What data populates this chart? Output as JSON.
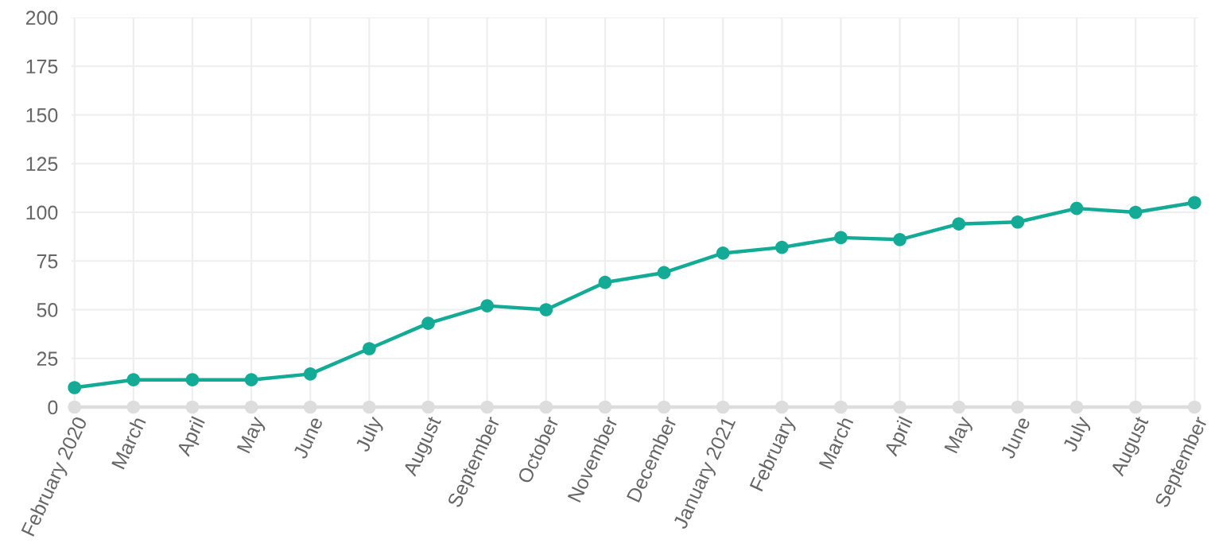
{
  "chart_data": {
    "type": "line",
    "categories": [
      "February 2020",
      "March",
      "April",
      "May",
      "June",
      "July",
      "August",
      "September",
      "October",
      "November",
      "December",
      "January 2021",
      "February",
      "March",
      "April",
      "May",
      "June",
      "July",
      "August",
      "September"
    ],
    "series": [
      {
        "color": "#dddddd",
        "values": [
          0,
          0,
          0,
          0,
          0,
          0,
          0,
          0,
          0,
          0,
          0,
          0,
          0,
          0,
          0,
          0,
          0,
          0,
          0,
          0
        ]
      },
      {
        "color": "#13ab95",
        "values": [
          10,
          14,
          14,
          14,
          17,
          30,
          43,
          52,
          50,
          64,
          69,
          79,
          82,
          87,
          86,
          94,
          95,
          102,
          100,
          105
        ]
      }
    ],
    "ylim": [
      0,
      200
    ],
    "yticks": [
      0,
      25,
      50,
      75,
      100,
      125,
      150,
      175,
      200
    ],
    "grid": true,
    "marker": "circle",
    "line_style": "solid"
  }
}
